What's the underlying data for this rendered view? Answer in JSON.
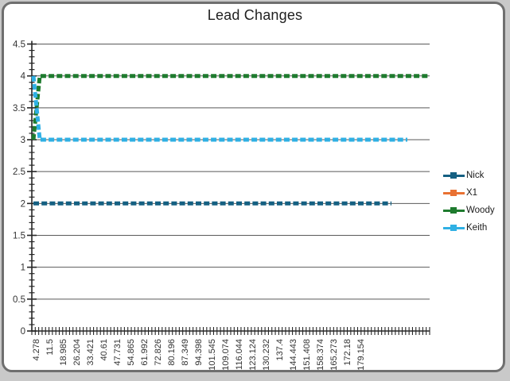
{
  "window": {
    "background_color": "#ffffff",
    "frame_border_color": "#6f6f6f"
  },
  "chart_data": {
    "type": "line",
    "title": "Lead Changes",
    "xlabel": "",
    "ylabel": "",
    "ylim": [
      0,
      4.5
    ],
    "y_major_step": 0.5,
    "y_minor_step": 0.1,
    "y_tick_labels": [
      "0",
      "0.5",
      "1",
      "1.5",
      "2",
      "2.5",
      "3",
      "3.5",
      "4",
      "4.5"
    ],
    "x_tick_labels": [
      "4.278",
      "11.5",
      "18.985",
      "26.204",
      "33.421",
      "40.61",
      "47.731",
      "54.865",
      "61.992",
      "72.826",
      "80.196",
      "87.349",
      "94.398",
      "101.545",
      "109.074",
      "116.044",
      "123.124",
      "130.232",
      "137.4",
      "144.443",
      "151.408",
      "158.374",
      "165.273",
      "172.18",
      "179.154"
    ],
    "x_minor_tick_count": 116,
    "grid": "horizontal-major",
    "gridline_color": "#595959",
    "axis_color": "#262626",
    "label_color": "#333333",
    "legend_position": "right",
    "line_style": "thick-dashed",
    "series": [
      {
        "name": "Nick",
        "color": "#156082",
        "visible_in_plot": true,
        "start_value": 2,
        "steady_value": 2,
        "points": [
          [
            0.004,
            2
          ],
          [
            0.904,
            2
          ]
        ]
      },
      {
        "name": "X1",
        "color": "#E97132",
        "visible_in_plot": false,
        "points": []
      },
      {
        "name": "Woody",
        "color": "#1E7B2E",
        "visible_in_plot": true,
        "start_value": 3,
        "steady_value": 4,
        "points": [
          [
            0.004,
            3
          ],
          [
            0.02,
            4
          ],
          [
            1.0,
            4
          ]
        ]
      },
      {
        "name": "Keith",
        "color": "#2FB0E4",
        "visible_in_plot": true,
        "start_value": 4,
        "steady_value": 3,
        "points": [
          [
            0.004,
            4
          ],
          [
            0.02,
            3
          ],
          [
            0.944,
            3
          ]
        ]
      }
    ]
  }
}
